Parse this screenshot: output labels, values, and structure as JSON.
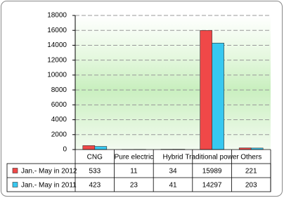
{
  "chart_data": {
    "type": "bar",
    "categories": [
      "CNG",
      "Pure electric",
      "Hybrid",
      "Traditional power",
      "Others"
    ],
    "series": [
      {
        "name": "Jan.- May in 2012",
        "color": "#f04848",
        "values": [
          533,
          11,
          34,
          15989,
          221
        ]
      },
      {
        "name": "Jan.- May in 2011",
        "color": "#38c8f0",
        "values": [
          423,
          23,
          41,
          14297,
          203
        ]
      }
    ],
    "ylim": [
      0,
      18000
    ],
    "yticks": [
      0,
      2000,
      4000,
      6000,
      8000,
      10000,
      12000,
      14000,
      16000,
      18000
    ],
    "grid": true
  }
}
